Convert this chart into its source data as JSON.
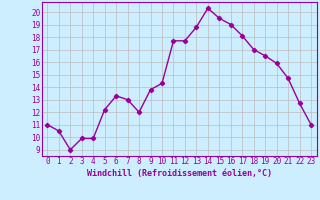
{
  "x": [
    0,
    1,
    2,
    3,
    4,
    5,
    6,
    7,
    8,
    9,
    10,
    11,
    12,
    13,
    14,
    15,
    16,
    17,
    18,
    19,
    20,
    21,
    22,
    23
  ],
  "y": [
    11,
    10.5,
    9,
    9.9,
    9.9,
    12.2,
    13.3,
    13.0,
    12.0,
    13.8,
    14.3,
    17.7,
    17.7,
    18.8,
    20.3,
    19.5,
    19.0,
    18.1,
    17.0,
    16.5,
    15.9,
    14.7,
    12.7,
    11.0
  ],
  "line_color": "#990099",
  "marker": "D",
  "marker_size": 2.2,
  "line_width": 1.0,
  "bg_color": "#cceeff",
  "grid_color": "#bbbbbb",
  "xlabel": "Windchill (Refroidissement éolien,°C)",
  "xlabel_color": "#990099",
  "tick_color": "#990099",
  "ylim": [
    8.5,
    20.8
  ],
  "xlim": [
    -0.5,
    23.5
  ],
  "yticks": [
    9,
    10,
    11,
    12,
    13,
    14,
    15,
    16,
    17,
    18,
    19,
    20
  ],
  "xticks": [
    0,
    1,
    2,
    3,
    4,
    5,
    6,
    7,
    8,
    9,
    10,
    11,
    12,
    13,
    14,
    15,
    16,
    17,
    18,
    19,
    20,
    21,
    22,
    23
  ],
  "tick_fontsize": 5.5,
  "xlabel_fontsize": 6.0
}
